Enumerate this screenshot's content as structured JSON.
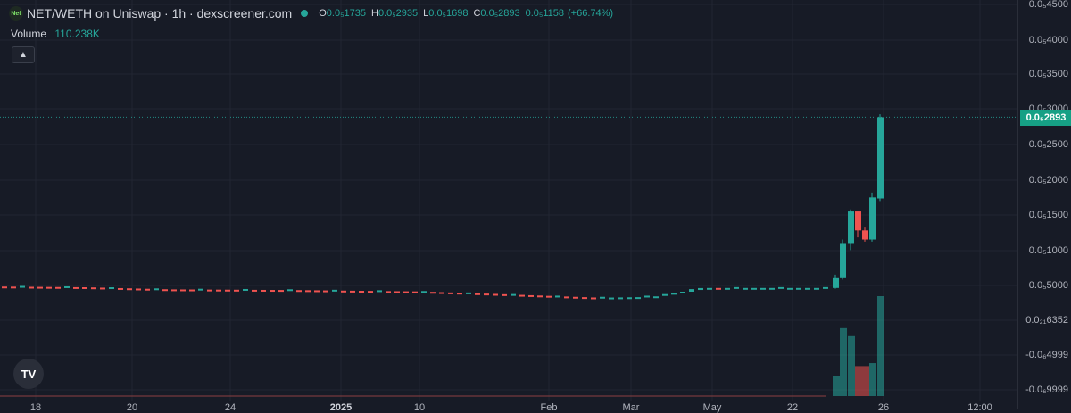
{
  "legend": {
    "token_logo_text": "Net",
    "pair_title": "NET/WETH on Uniswap · 1h · dexscreener.com",
    "open_label": "O",
    "open_value": "0.0₅1735",
    "high_label": "H",
    "high_value": "0.0₅2935",
    "low_label": "L",
    "low_value": "0.0₅1698",
    "close_label": "C",
    "close_value": "0.0₅2893",
    "change_value": "0.0₅1158",
    "change_pct": "(+66.74%)"
  },
  "volume_legend": {
    "label": "Volume",
    "value": "110.238K"
  },
  "collapse_icon": "▲",
  "tv_logo_text": "TV",
  "price_axis": {
    "labels": [
      "0.0₅4500",
      "0.0₅4000",
      "0.0₅3500",
      "0.0₅3000",
      "0.0₅2500",
      "0.0₅2000",
      "0.0₅1500",
      "0.0₅1000",
      "0.0₅5000",
      "0.0₂₁6352",
      "-0.0₆4999",
      "-0.0₆9999"
    ],
    "last_price": "0.0₅2893"
  },
  "time_axis": {
    "labels": [
      "18",
      "20",
      "24",
      "2025",
      "10",
      "Feb",
      "Mar",
      "May",
      "22",
      "26",
      "12:00"
    ]
  },
  "colors": {
    "up": "#26a69a",
    "down": "#ef5350",
    "background": "#171b26",
    "grid": "#222632",
    "last_price_badge": "#16a085"
  },
  "chart_data": {
    "type": "candlestick",
    "title": "NET/WETH on Uniswap · 1h · dexscreener.com",
    "y_ticks": [
      4500,
      4000,
      3500,
      3000,
      2500,
      2000,
      1500,
      1000,
      500,
      0.16352,
      -0.04999,
      -0.09999
    ],
    "x_ticks": [
      "18",
      "20",
      "24",
      "2025",
      "10",
      "Feb",
      "Mar",
      "May",
      "22",
      "26",
      "12:00"
    ],
    "last_price": "0.0₅2893",
    "flat_series": {
      "description_points": [
        {
          "t": 0,
          "v": 0.048
        },
        {
          "t": 0.1,
          "v": 0.047
        },
        {
          "t": 0.2,
          "v": 0.044
        },
        {
          "t": 0.35,
          "v": 0.043
        },
        {
          "t": 0.5,
          "v": 0.041
        },
        {
          "t": 0.58,
          "v": 0.038
        },
        {
          "t": 0.65,
          "v": 0.035
        },
        {
          "t": 0.72,
          "v": 0.032
        },
        {
          "t": 0.78,
          "v": 0.033
        },
        {
          "t": 0.83,
          "v": 0.041
        },
        {
          "t": 0.85,
          "v": 0.046
        }
      ]
    },
    "candles": [
      {
        "open": 0.046,
        "high": 0.065,
        "low": 0.045,
        "close": 0.06
      },
      {
        "open": 0.06,
        "high": 0.115,
        "low": 0.058,
        "close": 0.11
      },
      {
        "open": 0.11,
        "high": 0.158,
        "low": 0.1,
        "close": 0.155
      },
      {
        "open": 0.155,
        "high": 0.155,
        "low": 0.118,
        "close": 0.128
      },
      {
        "open": 0.128,
        "high": 0.132,
        "low": 0.112,
        "close": 0.115
      },
      {
        "open": 0.115,
        "high": 0.182,
        "low": 0.112,
        "close": 0.175
      },
      {
        "open": 0.1735,
        "high": 0.2935,
        "low": 0.1698,
        "close": 0.2893
      }
    ],
    "volume_series": [
      {
        "value": 0.2,
        "up": true
      },
      {
        "value": 0.68,
        "up": true
      },
      {
        "value": 0.6,
        "up": true
      },
      {
        "value": 0.3,
        "up": false
      },
      {
        "value": 0.3,
        "up": false
      },
      {
        "value": 0.33,
        "up": true
      },
      {
        "value": 1.0,
        "up": true
      }
    ],
    "volume_max": "110.238K"
  }
}
